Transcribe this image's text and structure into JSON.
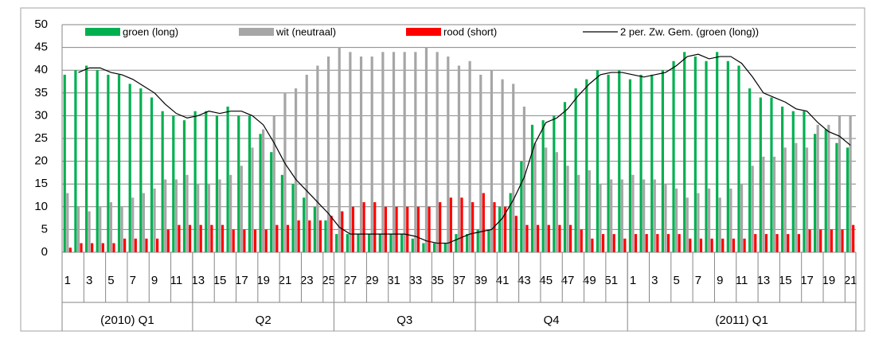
{
  "chart_data": {
    "type": "bar",
    "categories": [
      "1",
      null,
      "3",
      null,
      "5",
      null,
      "7",
      null,
      "9",
      null,
      "11",
      null,
      "13",
      null,
      "15",
      null,
      "17",
      null,
      "19",
      null,
      "21",
      null,
      "23",
      null,
      "25",
      null,
      "27",
      null,
      "29",
      null,
      "31",
      null,
      "33",
      null,
      "35",
      null,
      "37",
      null,
      "39",
      null,
      "41",
      null,
      "43",
      null,
      "45",
      null,
      "47",
      null,
      "49",
      null,
      "51",
      null,
      "1",
      null,
      "3",
      null,
      "5",
      null,
      "7",
      null,
      "9",
      null,
      "11",
      null,
      "13",
      null,
      "15",
      null,
      "17",
      null,
      "19",
      null,
      "21"
    ],
    "groups": [
      {
        "label": "(2010) Q1",
        "span": 12
      },
      {
        "label": "Q2",
        "span": 13
      },
      {
        "label": "Q3",
        "span": 13
      },
      {
        "label": "Q4",
        "span": 14
      },
      {
        "label": "(2011) Q1",
        "span": 21
      }
    ],
    "series": [
      {
        "name": "groen (long)",
        "color": "#00b050",
        "type": "bar",
        "values": [
          39,
          40,
          41,
          40,
          39,
          39,
          37,
          36,
          34,
          31,
          30,
          29,
          31,
          31,
          30,
          32,
          30,
          30,
          26,
          22,
          17,
          15,
          12,
          10,
          7,
          4,
          4,
          4,
          4,
          4,
          4,
          4,
          3,
          2,
          2,
          2,
          4,
          4,
          5,
          5,
          10,
          13,
          20,
          28,
          29,
          30,
          33,
          36,
          38,
          40,
          39,
          40,
          38,
          39,
          39,
          40,
          42,
          44,
          43,
          42,
          44,
          42,
          41,
          36,
          34,
          34,
          32,
          31,
          31,
          26,
          27,
          24,
          23
        ]
      },
      {
        "name": "wit (neutraal)",
        "color": "#a6a6a6",
        "type": "bar",
        "values": [
          13,
          10,
          9,
          10,
          11,
          10,
          12,
          13,
          14,
          16,
          16,
          17,
          15,
          15,
          16,
          17,
          19,
          23,
          27,
          30,
          35,
          36,
          39,
          41,
          43,
          45,
          44,
          43,
          43,
          44,
          44,
          44,
          44,
          45,
          44,
          43,
          41,
          42,
          39,
          40,
          38,
          37,
          32,
          24,
          23,
          22,
          19,
          17,
          18,
          15,
          16,
          16,
          17,
          16,
          16,
          15,
          14,
          12,
          13,
          14,
          12,
          14,
          15,
          19,
          21,
          21,
          23,
          24,
          23,
          28,
          28,
          30,
          30
        ]
      },
      {
        "name": "rood (short)",
        "color": "#ff0000",
        "type": "bar",
        "values": [
          1,
          2,
          2,
          2,
          2,
          3,
          3,
          3,
          3,
          5,
          6,
          6,
          6,
          6,
          6,
          5,
          5,
          5,
          5,
          6,
          6,
          7,
          7,
          7,
          8,
          9,
          10,
          11,
          11,
          10,
          10,
          10,
          10,
          10,
          11,
          12,
          12,
          11,
          13,
          11,
          10,
          8,
          6,
          6,
          6,
          6,
          6,
          5,
          3,
          4,
          4,
          3,
          4,
          4,
          4,
          4,
          4,
          3,
          3,
          3,
          3,
          3,
          3,
          4,
          4,
          4,
          4,
          4,
          5,
          5,
          5,
          5,
          6
        ]
      },
      {
        "name": "2 per. Zw. Gem. (groen (long))",
        "color": "#000000",
        "type": "line",
        "values": [
          null,
          39.5,
          40.5,
          40.5,
          39.5,
          39,
          38,
          36.5,
          35,
          32.5,
          30.5,
          29.5,
          30,
          31,
          30.5,
          31,
          31,
          30,
          28,
          24,
          19.5,
          16,
          13.5,
          11,
          8.5,
          5.5,
          4,
          4,
          4,
          4,
          4,
          4,
          3.5,
          2.5,
          2,
          2,
          3,
          4,
          4.5,
          5,
          7.5,
          11.5,
          16.5,
          24,
          28.5,
          29.5,
          31.5,
          34.5,
          37,
          39,
          39.5,
          39.5,
          39,
          38.5,
          39,
          39.5,
          41,
          43,
          43.5,
          42.5,
          43,
          43,
          41.5,
          38.5,
          35,
          34,
          33,
          31.5,
          31,
          28.5,
          26.5,
          25.5,
          23.5
        ]
      }
    ],
    "ylim": [
      0,
      50
    ],
    "yticks": [
      0,
      5,
      10,
      15,
      20,
      25,
      30,
      35,
      40,
      45,
      50
    ],
    "grid": true
  }
}
